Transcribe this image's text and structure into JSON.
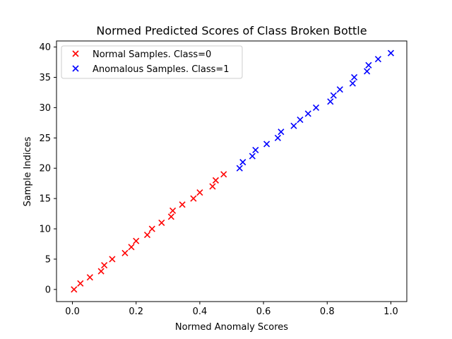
{
  "chart_data": {
    "type": "scatter",
    "title": "Normed Predicted Scores of Class Broken Bottle",
    "xlabel": "Normed Anomaly Scores",
    "ylabel": "Sample Indices",
    "xlim": [
      -0.05,
      1.05
    ],
    "ylim": [
      -2,
      41
    ],
    "xticks": [
      "0.0",
      "0.2",
      "0.4",
      "0.6",
      "0.8",
      "1.0"
    ],
    "xtick_values": [
      0.0,
      0.2,
      0.4,
      0.6,
      0.8,
      1.0
    ],
    "yticks": [
      "0",
      "5",
      "10",
      "15",
      "20",
      "25",
      "30",
      "35",
      "40"
    ],
    "ytick_values": [
      0,
      5,
      10,
      15,
      20,
      25,
      30,
      35,
      40
    ],
    "grid": false,
    "legend_position": "upper-left",
    "series": [
      {
        "name": "Normal Samples. Class=0",
        "color": "#ff0000",
        "marker": "x",
        "points": [
          [
            0.005,
            0
          ],
          [
            0.025,
            1
          ],
          [
            0.055,
            2
          ],
          [
            0.09,
            3
          ],
          [
            0.1,
            4
          ],
          [
            0.125,
            5
          ],
          [
            0.165,
            6
          ],
          [
            0.185,
            7
          ],
          [
            0.2,
            8
          ],
          [
            0.235,
            9
          ],
          [
            0.25,
            10
          ],
          [
            0.28,
            11
          ],
          [
            0.31,
            12
          ],
          [
            0.315,
            13
          ],
          [
            0.345,
            14
          ],
          [
            0.38,
            15
          ],
          [
            0.4,
            16
          ],
          [
            0.44,
            17
          ],
          [
            0.45,
            18
          ],
          [
            0.475,
            19
          ]
        ]
      },
      {
        "name": "Anomalous Samples. Class=1",
        "color": "#0000ff",
        "marker": "x",
        "points": [
          [
            0.525,
            20
          ],
          [
            0.535,
            21
          ],
          [
            0.565,
            22
          ],
          [
            0.575,
            23
          ],
          [
            0.61,
            24
          ],
          [
            0.645,
            25
          ],
          [
            0.655,
            26
          ],
          [
            0.695,
            27
          ],
          [
            0.715,
            28
          ],
          [
            0.74,
            29
          ],
          [
            0.765,
            30
          ],
          [
            0.81,
            31
          ],
          [
            0.82,
            32
          ],
          [
            0.84,
            33
          ],
          [
            0.88,
            34
          ],
          [
            0.885,
            35
          ],
          [
            0.925,
            36
          ],
          [
            0.93,
            37
          ],
          [
            0.96,
            38
          ],
          [
            1.0,
            39
          ]
        ]
      }
    ]
  }
}
